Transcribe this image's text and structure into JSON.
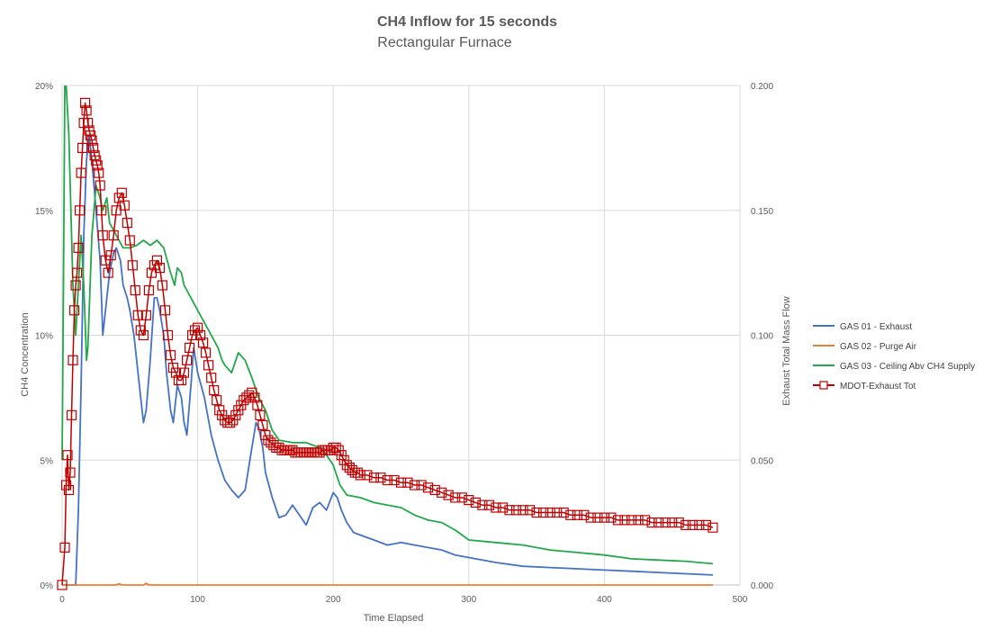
{
  "chart_data": {
    "type": "line",
    "title": "CH4 Inflow   for 15 seconds",
    "subtitle": "Rectangular Furnace",
    "xlabel": "Time Elapsed",
    "ylabel": "CH4 Concentration",
    "y2label": "Exhaust Total Mass Flow",
    "xlim": [
      0,
      500
    ],
    "ylim": [
      0,
      20
    ],
    "y2lim": [
      0,
      0.2
    ],
    "grid": true,
    "legend_position": "right",
    "x_ticks": [
      "0",
      "100",
      "200",
      "300",
      "400",
      "500"
    ],
    "y_ticks": [
      "0%",
      "5%",
      "10%",
      "15%",
      "20%"
    ],
    "y2_ticks": [
      "0.000",
      "0.050",
      "0.100",
      "0.150",
      "0.200"
    ],
    "series": [
      {
        "name": "GAS 01 - Exhaust",
        "axis": "left",
        "color": "#4472c4",
        "marker": "none",
        "x": [
          0,
          6,
          8,
          10,
          12,
          14,
          16,
          18,
          20,
          22,
          25,
          28,
          30,
          32,
          35,
          38,
          40,
          43,
          45,
          48,
          50,
          53,
          55,
          58,
          60,
          62,
          65,
          68,
          70,
          72,
          75,
          77,
          80,
          82,
          85,
          88,
          90,
          92,
          95,
          97,
          100,
          105,
          110,
          115,
          120,
          125,
          130,
          135,
          140,
          143,
          145,
          148,
          150,
          155,
          160,
          165,
          170,
          175,
          180,
          185,
          190,
          195,
          200,
          203,
          206,
          210,
          215,
          220,
          230,
          240,
          250,
          260,
          270,
          280,
          290,
          300,
          320,
          340,
          360,
          380,
          400,
          420,
          440,
          460,
          480
        ],
        "values": [
          0,
          0,
          0,
          0,
          3,
          8,
          14,
          17,
          18,
          17,
          15,
          13,
          10,
          11,
          12.5,
          13.3,
          13.5,
          13,
          12,
          11.5,
          11,
          10,
          9,
          7.5,
          6.5,
          7,
          9,
          11.5,
          11.5,
          11,
          10,
          8.5,
          7,
          6.5,
          8,
          7.5,
          6.5,
          6,
          8,
          9.5,
          8.5,
          7.5,
          6,
          5,
          4.2,
          3.8,
          3.5,
          3.8,
          5.5,
          6.5,
          6.3,
          5.5,
          4.5,
          3.5,
          2.7,
          2.8,
          3.2,
          2.8,
          2.4,
          3.1,
          3.3,
          3.0,
          3.7,
          3.5,
          3.0,
          2.5,
          2.1,
          2.0,
          1.8,
          1.6,
          1.7,
          1.6,
          1.5,
          1.4,
          1.2,
          1.1,
          0.9,
          0.75,
          0.7,
          0.65,
          0.6,
          0.55,
          0.5,
          0.45,
          0.4
        ]
      },
      {
        "name": "GAS 02 - Purge Air",
        "axis": "left",
        "color": "#ed7d31",
        "marker": "none",
        "x": [
          0,
          40,
          42,
          44,
          60,
          62,
          64,
          100,
          480
        ],
        "values": [
          0,
          0,
          0.05,
          0,
          0,
          0.07,
          0,
          0,
          0
        ]
      },
      {
        "name": "GAS 03 - Ceiling Abv CH4 Supply",
        "axis": "left",
        "color": "#22a84a",
        "marker": "none",
        "x": [
          0,
          1,
          2,
          3,
          5,
          8,
          10,
          12,
          14,
          16,
          18,
          19,
          20,
          22,
          25,
          28,
          30,
          33,
          35,
          40,
          45,
          50,
          55,
          60,
          65,
          70,
          75,
          80,
          83,
          85,
          88,
          90,
          95,
          100,
          105,
          110,
          115,
          118,
          120,
          125,
          130,
          135,
          140,
          145,
          150,
          155,
          160,
          170,
          180,
          190,
          195,
          200,
          205,
          210,
          220,
          230,
          240,
          250,
          260,
          270,
          280,
          290,
          300,
          320,
          340,
          360,
          380,
          400,
          420,
          440,
          460,
          480
        ],
        "values": [
          5,
          12,
          20,
          20,
          18,
          12,
          10,
          12,
          14,
          12,
          9,
          9.5,
          11,
          14,
          16,
          15.5,
          15,
          15.5,
          14.5,
          14,
          13.5,
          13.5,
          13.6,
          13.8,
          13.6,
          13.8,
          13.5,
          12.5,
          12,
          12.7,
          12.5,
          12,
          11.5,
          11,
          10.5,
          10,
          9.5,
          9.0,
          8.8,
          8.5,
          9.3,
          9.0,
          8.3,
          7.5,
          7.0,
          6.2,
          5.8,
          5.7,
          5.7,
          5.5,
          5.2,
          4.8,
          4.0,
          3.6,
          3.5,
          3.3,
          3.2,
          3.1,
          2.8,
          2.6,
          2.5,
          2.2,
          1.8,
          1.7,
          1.6,
          1.4,
          1.3,
          1.2,
          1.05,
          1.0,
          0.95,
          0.85
        ]
      },
      {
        "name": "MDOT-Exhaust Tot",
        "axis": "right",
        "color": "#c00000",
        "marker": "square",
        "x": [
          0,
          2,
          3,
          4,
          5,
          6,
          7,
          8,
          9,
          10,
          11,
          12,
          13,
          14,
          15,
          16,
          17,
          18,
          19,
          20,
          21,
          22,
          23,
          24,
          25,
          26,
          27,
          28,
          29,
          30,
          32,
          34,
          36,
          38,
          40,
          42,
          44,
          46,
          48,
          50,
          52,
          54,
          56,
          58,
          60,
          62,
          64,
          66,
          68,
          70,
          72,
          74,
          76,
          78,
          80,
          82,
          84,
          86,
          88,
          90,
          92,
          94,
          96,
          98,
          100,
          102,
          104,
          106,
          108,
          110,
          112,
          114,
          116,
          118,
          120,
          122,
          124,
          126,
          128,
          130,
          132,
          134,
          136,
          138,
          140,
          142,
          144,
          146,
          148,
          150,
          152,
          154,
          156,
          158,
          160,
          162,
          164,
          166,
          168,
          170,
          172,
          174,
          176,
          178,
          180,
          182,
          184,
          186,
          188,
          190,
          192,
          194,
          196,
          198,
          200,
          202,
          204,
          206,
          208,
          210,
          212,
          214,
          216,
          218,
          220,
          225,
          230,
          235,
          240,
          245,
          250,
          255,
          260,
          265,
          270,
          275,
          280,
          285,
          290,
          295,
          300,
          305,
          310,
          315,
          320,
          325,
          330,
          335,
          340,
          345,
          350,
          355,
          360,
          365,
          370,
          375,
          380,
          385,
          390,
          395,
          400,
          405,
          410,
          415,
          420,
          425,
          430,
          435,
          440,
          445,
          450,
          455,
          460,
          465,
          470,
          475,
          480
        ],
        "values": [
          0.0,
          0.015,
          0.04,
          0.052,
          0.038,
          0.045,
          0.068,
          0.09,
          0.11,
          0.12,
          0.125,
          0.135,
          0.15,
          0.165,
          0.175,
          0.185,
          0.193,
          0.19,
          0.185,
          0.182,
          0.18,
          0.178,
          0.175,
          0.172,
          0.17,
          0.168,
          0.165,
          0.16,
          0.15,
          0.14,
          0.13,
          0.125,
          0.132,
          0.14,
          0.15,
          0.155,
          0.157,
          0.152,
          0.145,
          0.138,
          0.128,
          0.118,
          0.108,
          0.102,
          0.1,
          0.108,
          0.118,
          0.125,
          0.128,
          0.13,
          0.127,
          0.12,
          0.11,
          0.1,
          0.092,
          0.087,
          0.085,
          0.082,
          0.082,
          0.085,
          0.09,
          0.095,
          0.1,
          0.102,
          0.103,
          0.1,
          0.097,
          0.093,
          0.088,
          0.083,
          0.078,
          0.074,
          0.07,
          0.068,
          0.066,
          0.065,
          0.065,
          0.066,
          0.068,
          0.07,
          0.072,
          0.074,
          0.075,
          0.076,
          0.077,
          0.075,
          0.072,
          0.068,
          0.064,
          0.06,
          0.058,
          0.057,
          0.056,
          0.055,
          0.055,
          0.054,
          0.054,
          0.054,
          0.054,
          0.054,
          0.053,
          0.053,
          0.053,
          0.053,
          0.053,
          0.053,
          0.053,
          0.053,
          0.053,
          0.053,
          0.054,
          0.054,
          0.054,
          0.054,
          0.055,
          0.055,
          0.054,
          0.052,
          0.05,
          0.048,
          0.047,
          0.046,
          0.045,
          0.045,
          0.044,
          0.044,
          0.043,
          0.043,
          0.042,
          0.042,
          0.041,
          0.041,
          0.04,
          0.04,
          0.039,
          0.038,
          0.037,
          0.036,
          0.035,
          0.035,
          0.034,
          0.033,
          0.032,
          0.032,
          0.031,
          0.031,
          0.03,
          0.03,
          0.03,
          0.03,
          0.029,
          0.029,
          0.029,
          0.029,
          0.029,
          0.028,
          0.028,
          0.028,
          0.027,
          0.027,
          0.027,
          0.027,
          0.026,
          0.026,
          0.026,
          0.026,
          0.026,
          0.025,
          0.025,
          0.025,
          0.025,
          0.025,
          0.024,
          0.024,
          0.024,
          0.024,
          0.023
        ]
      }
    ]
  }
}
